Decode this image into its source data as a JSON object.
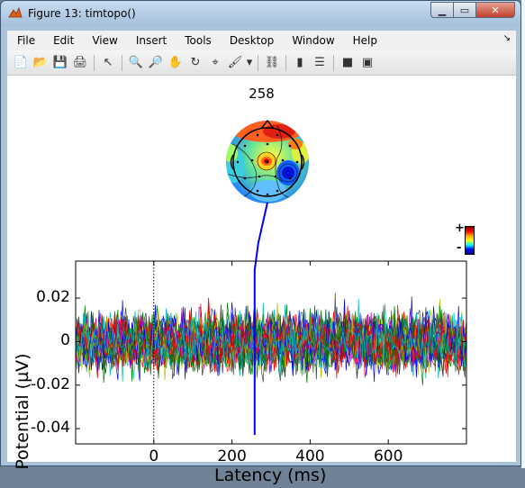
{
  "window": {
    "title": "Figure 13:  timtopo()"
  },
  "menu": [
    "File",
    "Edit",
    "View",
    "Insert",
    "Tools",
    "Desktop",
    "Window",
    "Help"
  ],
  "toolbar": [
    {
      "name": "new-figure-icon",
      "glyph": "📄"
    },
    {
      "name": "open-file-icon",
      "glyph": "📂"
    },
    {
      "name": "save-icon",
      "glyph": "💾"
    },
    {
      "name": "print-icon",
      "glyph": "🖨"
    },
    {
      "name": "sep"
    },
    {
      "name": "edit-plot-arrow-icon",
      "glyph": "↖"
    },
    {
      "name": "sep"
    },
    {
      "name": "zoom-in-icon",
      "glyph": "🔍"
    },
    {
      "name": "zoom-out-icon",
      "glyph": "🔎"
    },
    {
      "name": "pan-hand-icon",
      "glyph": "✋"
    },
    {
      "name": "rotate-3d-icon",
      "glyph": "↻"
    },
    {
      "name": "data-cursor-icon",
      "glyph": "⌖"
    },
    {
      "name": "brush-icon",
      "glyph": "🖌"
    },
    {
      "name": "brush-dropdown-icon",
      "glyph": "▾"
    },
    {
      "name": "sep"
    },
    {
      "name": "link-plot-icon",
      "glyph": "⛓"
    },
    {
      "name": "sep"
    },
    {
      "name": "insert-colorbar-icon",
      "glyph": "▮"
    },
    {
      "name": "insert-legend-icon",
      "glyph": "☰"
    },
    {
      "name": "sep"
    },
    {
      "name": "hide-plot-tools-icon",
      "glyph": "■"
    },
    {
      "name": "show-plot-tools-icon",
      "glyph": "▣"
    }
  ],
  "colorbar": {
    "plus": "+",
    "minus": "-"
  },
  "chart_data": {
    "type": "line",
    "title": "258",
    "xlabel": "Latency (ms)",
    "ylabel": "Potential (µV)",
    "xlim": [
      -200,
      800
    ],
    "ylim": [
      -0.047,
      0.037
    ],
    "xticks": [
      0,
      200,
      400,
      600
    ],
    "yticks": [
      0.02,
      0,
      -0.02,
      -0.04
    ],
    "ytick_labels": [
      "0.02",
      "0",
      "-0.02",
      "-0.04"
    ],
    "zero_marker_x": 0,
    "topoplot_latency": 258,
    "series_count": 32,
    "colors": [
      "#0000ff",
      "#008000",
      "#ff0000",
      "#00bfbf",
      "#bf00bf",
      "#bfbf00",
      "#404040"
    ],
    "series_note": "multi-channel EEG traces, noise-like, amplitude approx ±0.02–0.03 µV"
  }
}
